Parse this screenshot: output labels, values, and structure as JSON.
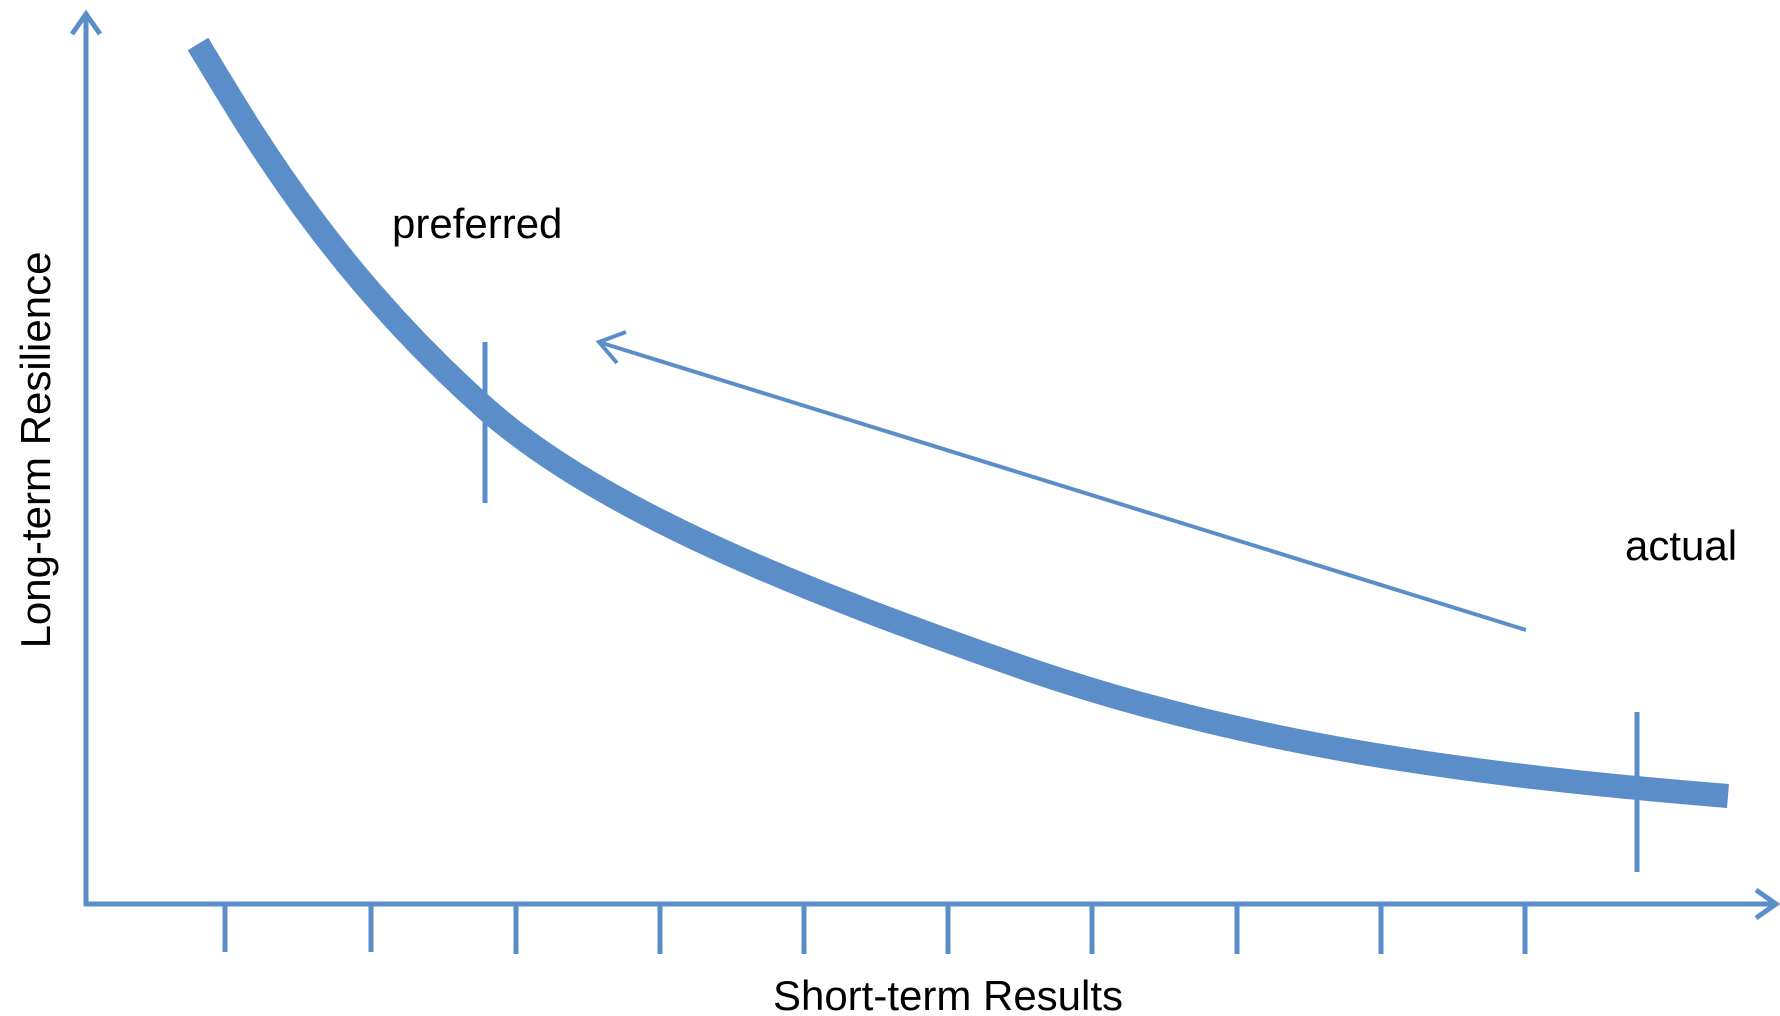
{
  "diagram": {
    "xlabel": "Short-term Results",
    "ylabel": "Long-term Resilience",
    "labels": {
      "preferred": "preferred",
      "actual": "actual"
    },
    "colors": {
      "line": "#5b8ec8",
      "text": "#000000",
      "background": "#ffffff"
    },
    "x_ticks_count": 10
  }
}
